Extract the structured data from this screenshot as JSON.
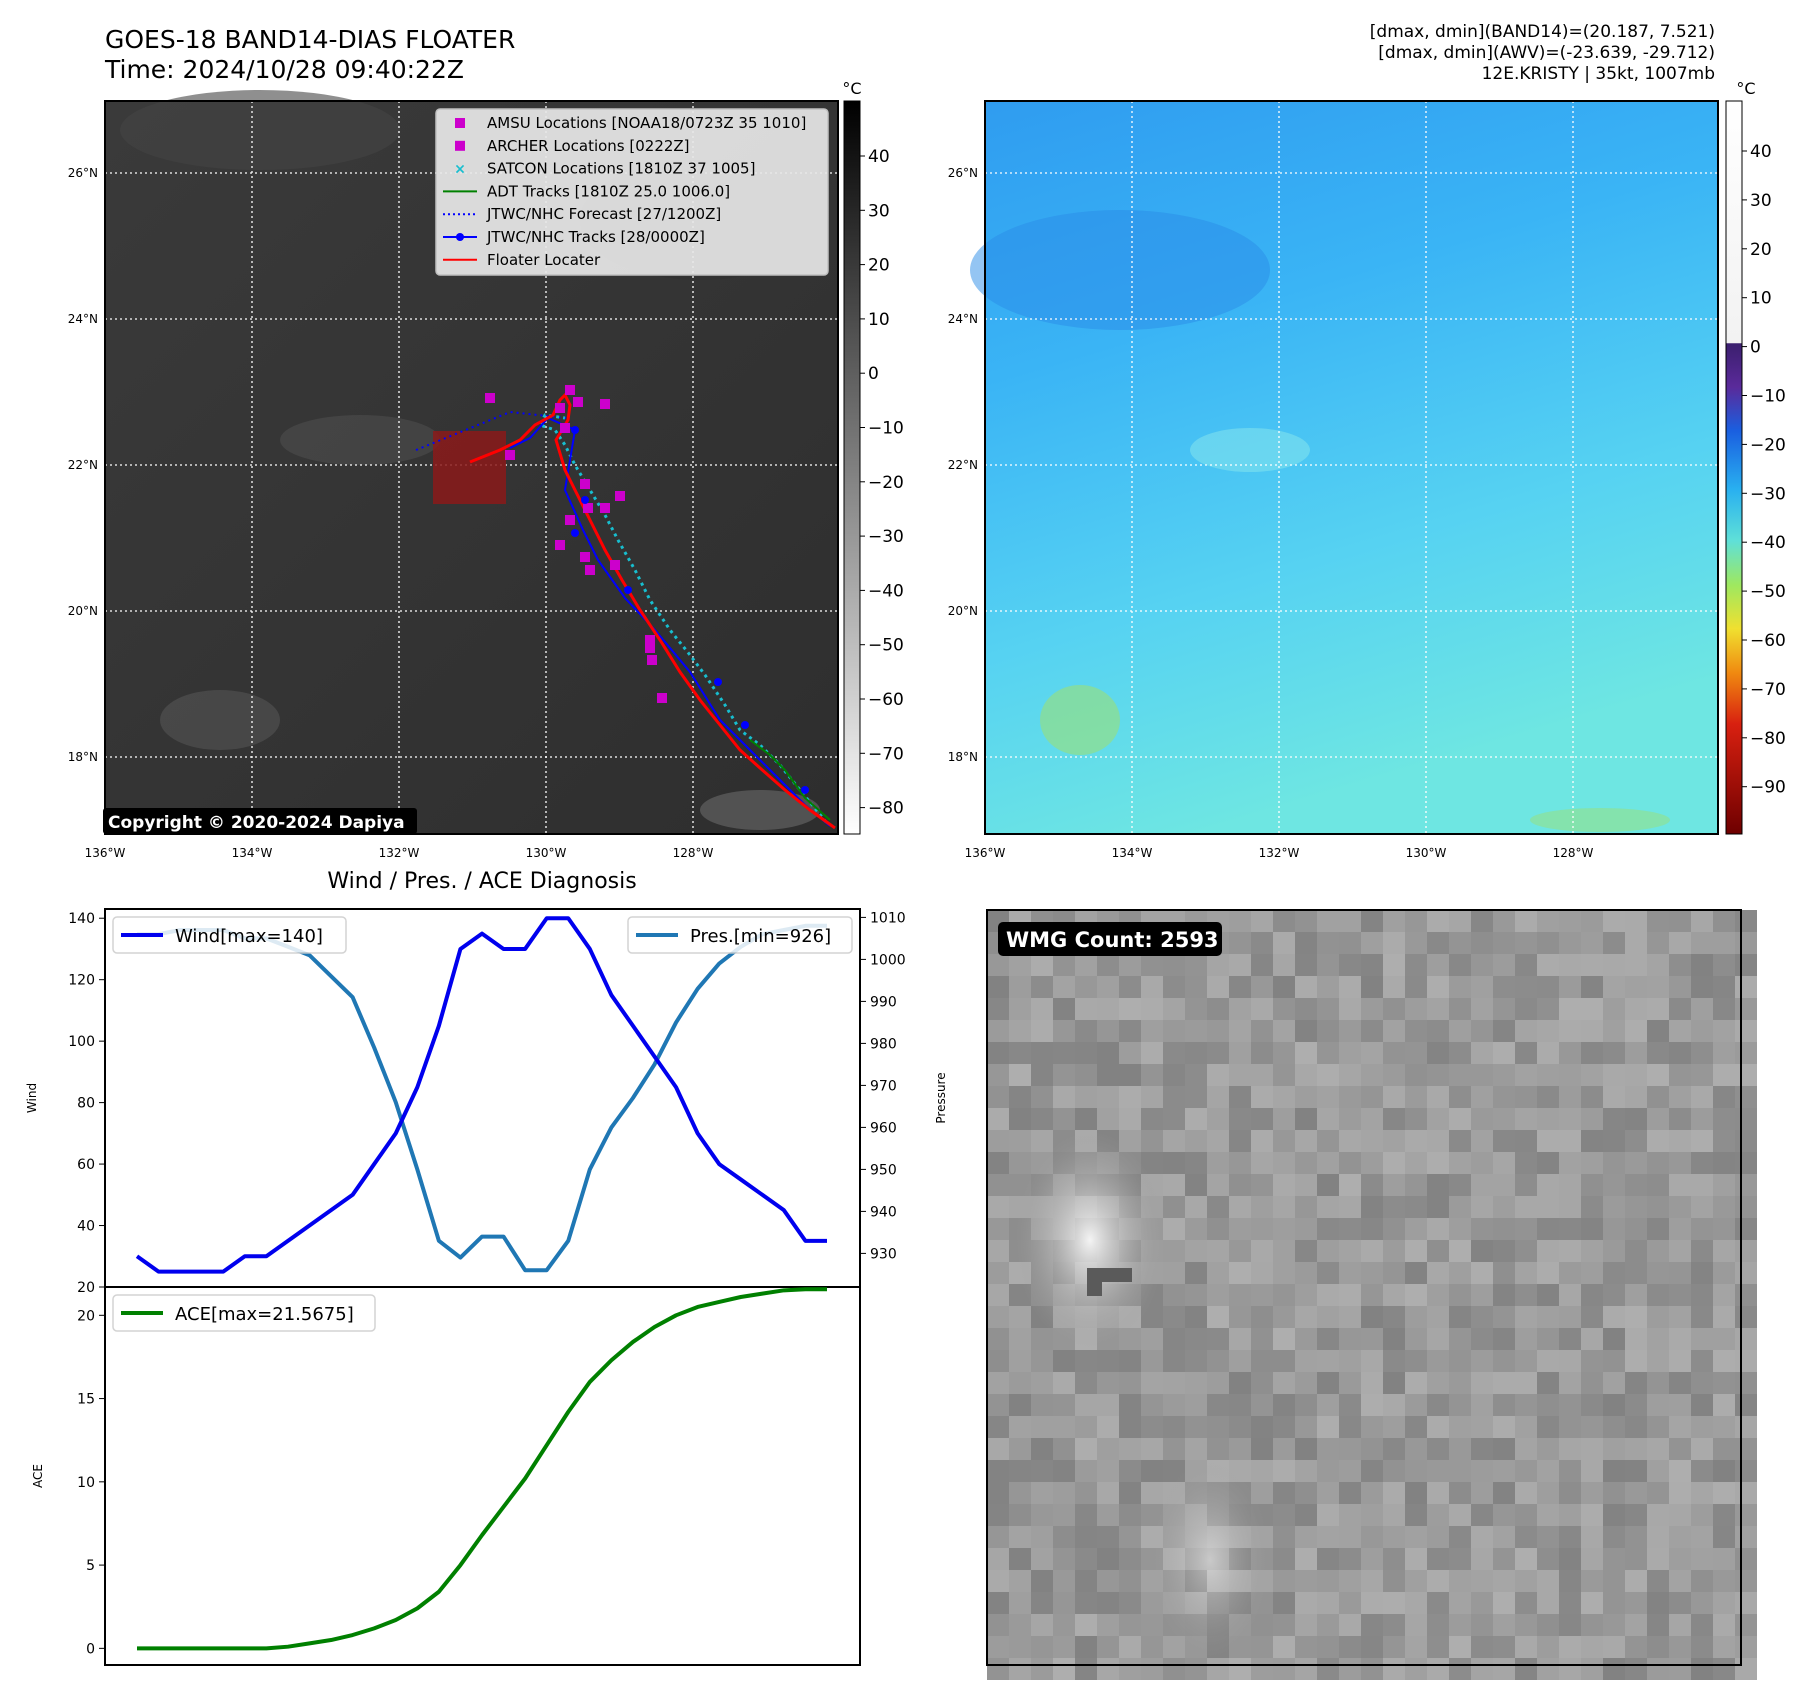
{
  "header": {
    "title_line1": "GOES-18 BAND14-DIAS FLOATER",
    "title_line2": "Time: 2024/10/28 09:40:22Z",
    "info_line1": "[dmax, dmin](BAND14)=(20.187, 7.521)",
    "info_line2": "[dmax, dmin](AWV)=(-23.639, -29.712)",
    "info_line3": "12E.KRISTY | 35kt, 1007mb"
  },
  "map_axes": {
    "lon_ticks": [
      "136°W",
      "134°W",
      "132°W",
      "130°W",
      "128°W"
    ],
    "lat_ticks": [
      "26°N",
      "24°N",
      "22°N",
      "20°N",
      "18°N"
    ]
  },
  "ir_panel": {
    "copyright": "Copyright © 2020-2024 Dapiya",
    "colorbar_unit": "°C",
    "colorbar_ticks": [
      "40",
      "30",
      "20",
      "10",
      "0",
      "−10",
      "−20",
      "−30",
      "−40",
      "−50",
      "−60",
      "−70",
      "−80"
    ],
    "legend": [
      {
        "label": "AMSU Locations [NOAA18/0723Z 35 1010]",
        "color": "#cc00cc",
        "marker": "square"
      },
      {
        "label": "ARCHER Locations [0222Z]",
        "color": "#cc00cc",
        "marker": "square"
      },
      {
        "label": "SATCON Locations [1810Z 37 1005]",
        "color": "#17becf",
        "marker": "x"
      },
      {
        "label": "ADT Tracks [1810Z 25.0 1006.0]",
        "color": "#008000",
        "marker": "line"
      },
      {
        "label": "JTWC/NHC Forecast [27/1200Z]",
        "color": "#0000ff",
        "marker": "dotted"
      },
      {
        "label": "JTWC/NHC Tracks [28/0000Z]",
        "color": "#0000ff",
        "marker": "line-dot"
      },
      {
        "label": "Floater Locater",
        "color": "#ff0000",
        "marker": "line"
      }
    ]
  },
  "wv_panel": {
    "colorbar_unit": "°C",
    "colorbar_ticks": [
      "40",
      "30",
      "20",
      "10",
      "0",
      "−10",
      "−20",
      "−30",
      "−40",
      "−50",
      "−60",
      "−70",
      "−80",
      "−90"
    ]
  },
  "diag_title": "Wind / Pres. / ACE Diagnosis",
  "wmg_label": "WMG Count: 2593",
  "chart_data": [
    {
      "type": "line",
      "title": "Wind / Pres. / ACE Diagnosis",
      "ylabel": "Wind",
      "y2label": "Pressure",
      "ylim": [
        20,
        143
      ],
      "y2lim": [
        922,
        1012
      ],
      "yticks": [
        "20",
        "40",
        "60",
        "80",
        "100",
        "120",
        "140"
      ],
      "y2ticks": [
        "930",
        "940",
        "950",
        "960",
        "970",
        "980",
        "990",
        "1000",
        "1010"
      ],
      "series": [
        {
          "name": "Wind[max=140]",
          "axis": "left",
          "color": "#0000ee",
          "values": [
            30,
            25,
            25,
            25,
            25,
            30,
            30,
            35,
            40,
            45,
            50,
            60,
            70,
            85,
            105,
            130,
            135,
            130,
            130,
            140,
            140,
            130,
            115,
            105,
            95,
            85,
            70,
            60,
            55,
            50,
            45,
            35,
            35
          ]
        },
        {
          "name": "Pres.[min=926]",
          "axis": "right",
          "color": "#1f77b4",
          "values": [
            1006,
            1006,
            1007,
            1007,
            1007,
            1005,
            1005,
            1003,
            1001,
            996,
            991,
            979,
            966,
            950,
            933,
            929,
            934,
            934,
            926,
            926,
            933,
            950,
            960,
            967,
            975,
            985,
            993,
            999,
            1003,
            1006,
            1007,
            1008,
            1008
          ]
        }
      ]
    },
    {
      "type": "line",
      "ylabel": "ACE",
      "ylim": [
        -1,
        21.7
      ],
      "yticks": [
        "0",
        "5",
        "10",
        "15",
        "20"
      ],
      "series": [
        {
          "name": "ACE[max=21.5675]",
          "color": "#008000",
          "values": [
            0,
            0,
            0,
            0,
            0,
            0,
            0,
            0.1,
            0.3,
            0.5,
            0.8,
            1.2,
            1.7,
            2.4,
            3.4,
            5.0,
            6.8,
            8.5,
            10.2,
            12.2,
            14.2,
            16.0,
            17.3,
            18.4,
            19.3,
            20.0,
            20.5,
            20.8,
            21.1,
            21.3,
            21.5,
            21.5675,
            21.5675
          ]
        }
      ]
    }
  ]
}
